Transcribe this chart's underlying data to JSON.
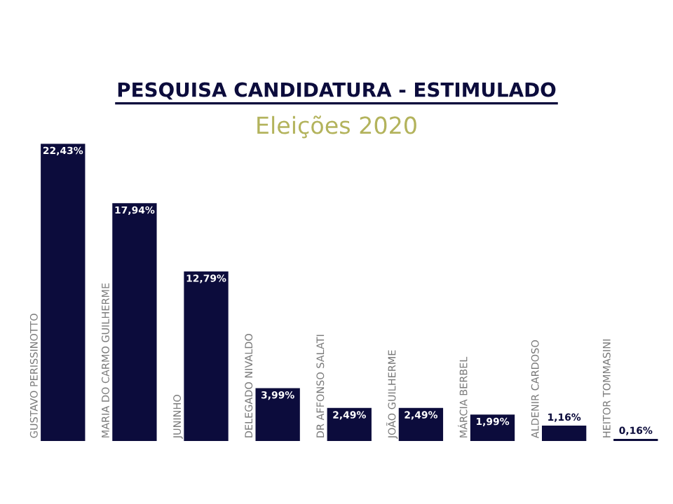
{
  "chart_data": {
    "type": "bar",
    "title": "PESQUISA CANDIDATURA - ESTIMULADO",
    "subtitle": "Eleições 2020",
    "categories": [
      "GUSTAVO PERISSINOTTO",
      "MARIA DO CARMO GUILHERME",
      "JUNINHO",
      "DELEGADO NIVALDO",
      "DR AFFONSO SALATI",
      "JOÃO GUILHERME",
      "MÁRCIA BERBEL",
      "ALDENIR CARDOSO",
      "HEITOR TOMMASINI"
    ],
    "values": [
      22.43,
      17.94,
      12.79,
      3.99,
      2.49,
      2.49,
      1.99,
      1.16,
      0.16
    ],
    "value_labels": [
      "22,43%",
      "17,94%",
      "12,79%",
      "3,99%",
      "2,49%",
      "2,49%",
      "1,99%",
      "1,16%",
      "0,16%"
    ],
    "color": "#0c0c3c"
  }
}
